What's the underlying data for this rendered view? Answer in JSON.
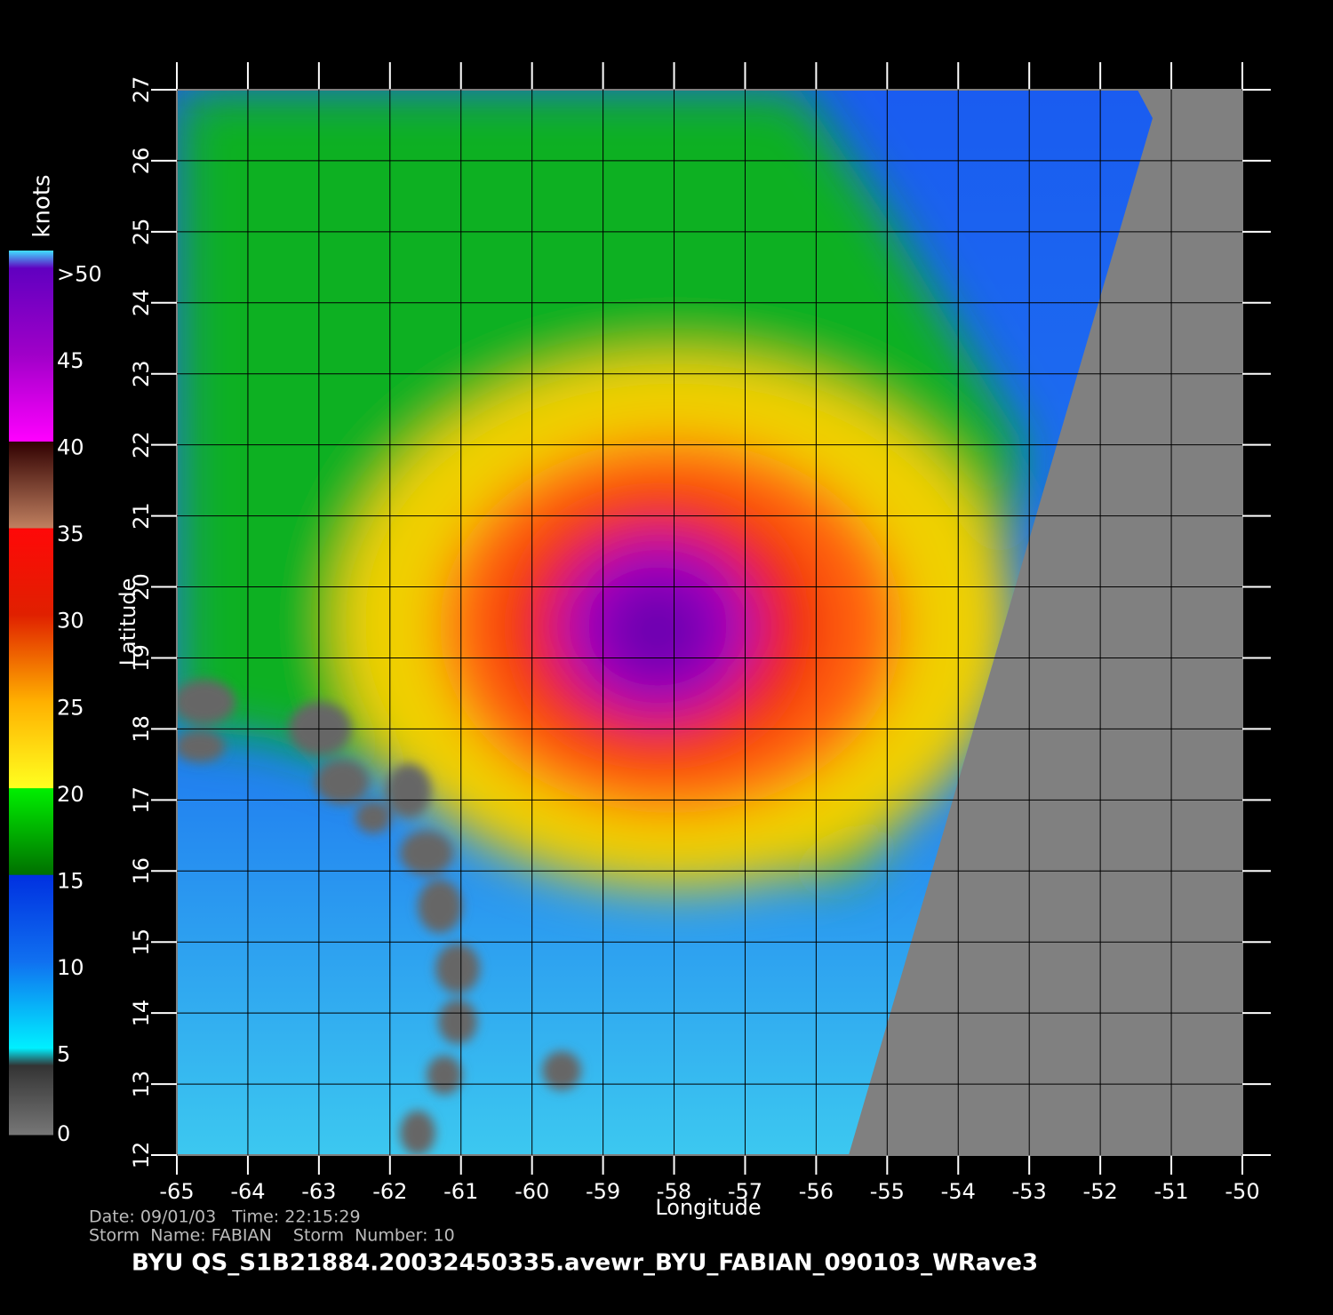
{
  "map": {
    "xlabel": "Longitude",
    "ylabel": "Latitude",
    "xlim": [
      -65,
      -50
    ],
    "ylim": [
      12,
      27
    ],
    "xticks": [
      -65,
      -64,
      -63,
      -62,
      -61,
      -60,
      -59,
      -58,
      -57,
      -56,
      -55,
      -54,
      -53,
      -52,
      -51,
      -50
    ],
    "yticks": [
      12,
      13,
      14,
      15,
      16,
      17,
      18,
      19,
      20,
      21,
      22,
      23,
      24,
      25,
      26,
      27
    ]
  },
  "colorbar": {
    "title": "knots",
    "lim": [
      0,
      51
    ],
    "ticks": [
      0,
      5,
      10,
      15,
      20,
      25,
      30,
      35,
      40,
      45,
      {
        "value": 50,
        "label": ">50"
      }
    ]
  },
  "info": {
    "line1": "Date: 09/01/03   Time: 22:15:29",
    "line2": "Storm  Name: FABIAN    Storm  Number: 10",
    "filename": "BYU  QS_S1B21884.20032450335.avewr_BYU_FABIAN_090103_WRave3"
  }
}
